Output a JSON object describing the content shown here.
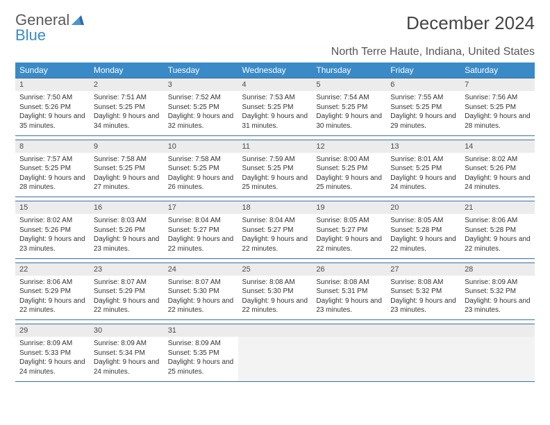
{
  "brand": {
    "word1": "General",
    "word2": "Blue"
  },
  "title": "December 2024",
  "location": "North Terre Haute, Indiana, United States",
  "colors": {
    "header_bg": "#3a8ac7",
    "header_text": "#ffffff",
    "daynum_bg": "#ececec",
    "border": "#3a6fa0",
    "brand_gray": "#5a5a5a",
    "brand_blue": "#3a8ac7"
  },
  "day_labels": [
    "Sunday",
    "Monday",
    "Tuesday",
    "Wednesday",
    "Thursday",
    "Friday",
    "Saturday"
  ],
  "weeks": [
    [
      {
        "n": "1",
        "sr": "7:50 AM",
        "ss": "5:26 PM",
        "dl": "9 hours and 35 minutes."
      },
      {
        "n": "2",
        "sr": "7:51 AM",
        "ss": "5:25 PM",
        "dl": "9 hours and 34 minutes."
      },
      {
        "n": "3",
        "sr": "7:52 AM",
        "ss": "5:25 PM",
        "dl": "9 hours and 32 minutes."
      },
      {
        "n": "4",
        "sr": "7:53 AM",
        "ss": "5:25 PM",
        "dl": "9 hours and 31 minutes."
      },
      {
        "n": "5",
        "sr": "7:54 AM",
        "ss": "5:25 PM",
        "dl": "9 hours and 30 minutes."
      },
      {
        "n": "6",
        "sr": "7:55 AM",
        "ss": "5:25 PM",
        "dl": "9 hours and 29 minutes."
      },
      {
        "n": "7",
        "sr": "7:56 AM",
        "ss": "5:25 PM",
        "dl": "9 hours and 28 minutes."
      }
    ],
    [
      {
        "n": "8",
        "sr": "7:57 AM",
        "ss": "5:25 PM",
        "dl": "9 hours and 28 minutes."
      },
      {
        "n": "9",
        "sr": "7:58 AM",
        "ss": "5:25 PM",
        "dl": "9 hours and 27 minutes."
      },
      {
        "n": "10",
        "sr": "7:58 AM",
        "ss": "5:25 PM",
        "dl": "9 hours and 26 minutes."
      },
      {
        "n": "11",
        "sr": "7:59 AM",
        "ss": "5:25 PM",
        "dl": "9 hours and 25 minutes."
      },
      {
        "n": "12",
        "sr": "8:00 AM",
        "ss": "5:25 PM",
        "dl": "9 hours and 25 minutes."
      },
      {
        "n": "13",
        "sr": "8:01 AM",
        "ss": "5:25 PM",
        "dl": "9 hours and 24 minutes."
      },
      {
        "n": "14",
        "sr": "8:02 AM",
        "ss": "5:26 PM",
        "dl": "9 hours and 24 minutes."
      }
    ],
    [
      {
        "n": "15",
        "sr": "8:02 AM",
        "ss": "5:26 PM",
        "dl": "9 hours and 23 minutes."
      },
      {
        "n": "16",
        "sr": "8:03 AM",
        "ss": "5:26 PM",
        "dl": "9 hours and 23 minutes."
      },
      {
        "n": "17",
        "sr": "8:04 AM",
        "ss": "5:27 PM",
        "dl": "9 hours and 22 minutes."
      },
      {
        "n": "18",
        "sr": "8:04 AM",
        "ss": "5:27 PM",
        "dl": "9 hours and 22 minutes."
      },
      {
        "n": "19",
        "sr": "8:05 AM",
        "ss": "5:27 PM",
        "dl": "9 hours and 22 minutes."
      },
      {
        "n": "20",
        "sr": "8:05 AM",
        "ss": "5:28 PM",
        "dl": "9 hours and 22 minutes."
      },
      {
        "n": "21",
        "sr": "8:06 AM",
        "ss": "5:28 PM",
        "dl": "9 hours and 22 minutes."
      }
    ],
    [
      {
        "n": "22",
        "sr": "8:06 AM",
        "ss": "5:29 PM",
        "dl": "9 hours and 22 minutes."
      },
      {
        "n": "23",
        "sr": "8:07 AM",
        "ss": "5:29 PM",
        "dl": "9 hours and 22 minutes."
      },
      {
        "n": "24",
        "sr": "8:07 AM",
        "ss": "5:30 PM",
        "dl": "9 hours and 22 minutes."
      },
      {
        "n": "25",
        "sr": "8:08 AM",
        "ss": "5:30 PM",
        "dl": "9 hours and 22 minutes."
      },
      {
        "n": "26",
        "sr": "8:08 AM",
        "ss": "5:31 PM",
        "dl": "9 hours and 23 minutes."
      },
      {
        "n": "27",
        "sr": "8:08 AM",
        "ss": "5:32 PM",
        "dl": "9 hours and 23 minutes."
      },
      {
        "n": "28",
        "sr": "8:09 AM",
        "ss": "5:32 PM",
        "dl": "9 hours and 23 minutes."
      }
    ],
    [
      {
        "n": "29",
        "sr": "8:09 AM",
        "ss": "5:33 PM",
        "dl": "9 hours and 24 minutes."
      },
      {
        "n": "30",
        "sr": "8:09 AM",
        "ss": "5:34 PM",
        "dl": "9 hours and 24 minutes."
      },
      {
        "n": "31",
        "sr": "8:09 AM",
        "ss": "5:35 PM",
        "dl": "9 hours and 25 minutes."
      },
      null,
      null,
      null,
      null
    ]
  ],
  "labels": {
    "sunrise": "Sunrise:",
    "sunset": "Sunset:",
    "daylight": "Daylight:"
  }
}
